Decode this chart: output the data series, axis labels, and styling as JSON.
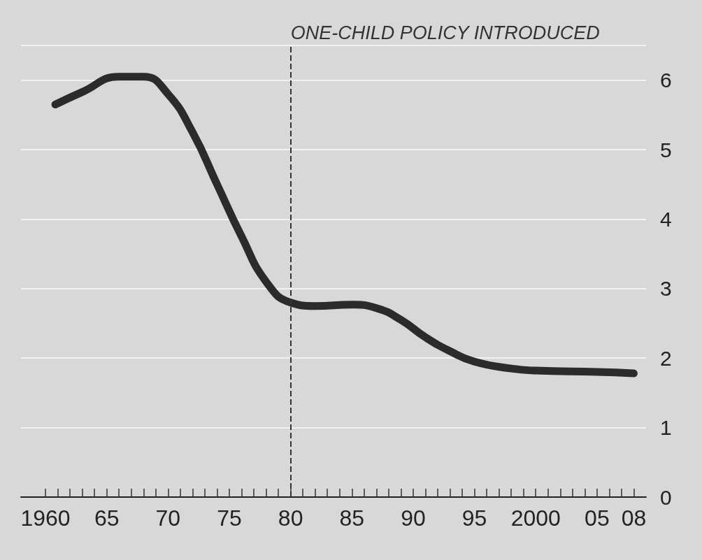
{
  "chart_data": {
    "type": "line",
    "x": [
      1960.8,
      1963,
      1966,
      1968,
      1970,
      1972,
      1974,
      1976,
      1978,
      1980,
      1982,
      1985,
      1987,
      1989,
      1991,
      1993,
      1995,
      1998,
      2000,
      2005,
      2008
    ],
    "series": [
      {
        "color": "#2b2b2b",
        "values": [
          5.65,
          5.83,
          6.05,
          6.05,
          5.8,
          5.25,
          4.5,
          3.75,
          3.1,
          2.8,
          2.75,
          2.77,
          2.72,
          2.55,
          2.3,
          2.1,
          1.95,
          1.85,
          1.82,
          1.8,
          1.78
        ]
      }
    ],
    "xlim": [
      1958,
      2009
    ],
    "xticks": [
      {
        "value": 1960,
        "label": "1960"
      },
      {
        "value": 1961,
        "label": null
      },
      {
        "value": 1962,
        "label": null
      },
      {
        "value": 1963,
        "label": null
      },
      {
        "value": 1964,
        "label": null
      },
      {
        "value": 1965,
        "label": "65"
      },
      {
        "value": 1966,
        "label": null
      },
      {
        "value": 1967,
        "label": null
      },
      {
        "value": 1968,
        "label": null
      },
      {
        "value": 1969,
        "label": null
      },
      {
        "value": 1970,
        "label": "70"
      },
      {
        "value": 1971,
        "label": null
      },
      {
        "value": 1972,
        "label": null
      },
      {
        "value": 1973,
        "label": null
      },
      {
        "value": 1974,
        "label": null
      },
      {
        "value": 1975,
        "label": "75"
      },
      {
        "value": 1976,
        "label": null
      },
      {
        "value": 1977,
        "label": null
      },
      {
        "value": 1978,
        "label": null
      },
      {
        "value": 1979,
        "label": null
      },
      {
        "value": 1980,
        "label": "80"
      },
      {
        "value": 1981,
        "label": null
      },
      {
        "value": 1982,
        "label": null
      },
      {
        "value": 1983,
        "label": null
      },
      {
        "value": 1984,
        "label": null
      },
      {
        "value": 1985,
        "label": "85"
      },
      {
        "value": 1986,
        "label": null
      },
      {
        "value": 1987,
        "label": null
      },
      {
        "value": 1988,
        "label": null
      },
      {
        "value": 1989,
        "label": null
      },
      {
        "value": 1990,
        "label": "90"
      },
      {
        "value": 1991,
        "label": null
      },
      {
        "value": 1992,
        "label": null
      },
      {
        "value": 1993,
        "label": null
      },
      {
        "value": 1994,
        "label": null
      },
      {
        "value": 1995,
        "label": "95"
      },
      {
        "value": 1996,
        "label": null
      },
      {
        "value": 1997,
        "label": null
      },
      {
        "value": 1998,
        "label": null
      },
      {
        "value": 1999,
        "label": null
      },
      {
        "value": 2000,
        "label": "2000"
      },
      {
        "value": 2001,
        "label": null
      },
      {
        "value": 2002,
        "label": null
      },
      {
        "value": 2003,
        "label": null
      },
      {
        "value": 2004,
        "label": null
      },
      {
        "value": 2005,
        "label": "05"
      },
      {
        "value": 2006,
        "label": null
      },
      {
        "value": 2007,
        "label": null
      },
      {
        "value": 2008,
        "label": "08"
      }
    ],
    "ylim": [
      0,
      6.5
    ],
    "yticks": [
      0,
      1,
      2,
      3,
      4,
      5,
      6
    ],
    "grid": "y",
    "line_style": "solid",
    "ref_lines": [
      {
        "axis": "x",
        "value": 1980,
        "label": "ONE-CHILD POLICY INTRODUCED",
        "color": "#333333",
        "line_style": "dashed"
      }
    ]
  }
}
